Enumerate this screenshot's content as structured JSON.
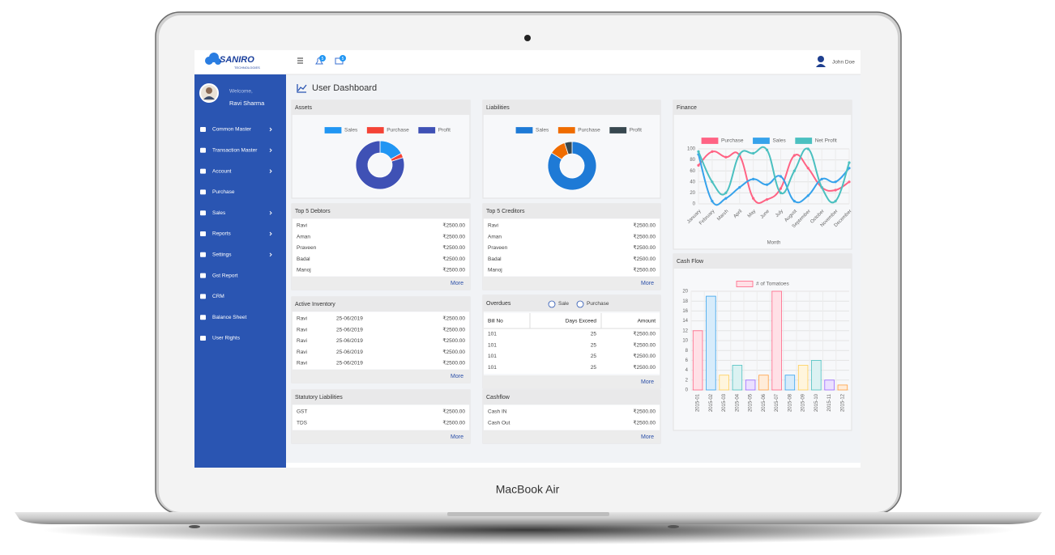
{
  "device": {
    "label": "MacBook Air"
  },
  "header": {
    "logo": "SANIRO",
    "logo_sub": "TECHNOLOGIES",
    "notifications": 5,
    "messages": 5,
    "user": "John Doe"
  },
  "sidebar": {
    "welcome": "Welcome,",
    "user": "Ravi Sharma",
    "menu": [
      {
        "label": "Common Master",
        "submenu": true
      },
      {
        "label": "Transaction Master",
        "submenu": true
      },
      {
        "label": "Account",
        "submenu": true
      },
      {
        "label": "Purchase",
        "submenu": false
      },
      {
        "label": "Sales",
        "submenu": true
      },
      {
        "label": "Reports",
        "submenu": true
      },
      {
        "label": "Settings",
        "submenu": true
      },
      {
        "label": "Gst Report",
        "submenu": false
      },
      {
        "label": "CRM",
        "submenu": false
      },
      {
        "label": "Balance Sheet",
        "submenu": false
      },
      {
        "label": "User Rights",
        "submenu": false
      }
    ]
  },
  "page_title": "User Dashboard",
  "panels": {
    "debtors": {
      "title": "Top 5 Debtors",
      "rows": [
        [
          "Ravi",
          "₹2500.00"
        ],
        [
          "Aman",
          "₹2500.00"
        ],
        [
          "Praveen",
          "₹2500.00"
        ],
        [
          "Badal",
          "₹2500.00"
        ],
        [
          "Manoj",
          "₹2500.00"
        ]
      ],
      "more": "More"
    },
    "creditors": {
      "title": "Top 5 Creditors",
      "rows": [
        [
          "Ravi",
          "₹2500.00"
        ],
        [
          "Aman",
          "₹2500.00"
        ],
        [
          "Praveen",
          "₹2500.00"
        ],
        [
          "Badal",
          "₹2500.00"
        ],
        [
          "Manoj",
          "₹2500.00"
        ]
      ],
      "more": "More"
    },
    "inventory": {
      "title": "Active Inventory",
      "rows": [
        [
          "Ravi",
          "25-06/2019",
          "₹2500.00"
        ],
        [
          "Ravi",
          "25-06/2019",
          "₹2500.00"
        ],
        [
          "Ravi",
          "25-06/2019",
          "₹2500.00"
        ],
        [
          "Ravi",
          "25-06/2019",
          "₹2500.00"
        ],
        [
          "Ravi",
          "25-06/2019",
          "₹2500.00"
        ]
      ],
      "more": "More"
    },
    "overdues": {
      "title": "Overdues",
      "options": [
        "Sale",
        "Purchase"
      ],
      "columns": [
        "Bill No",
        "Days Exceed",
        "Amount"
      ],
      "rows": [
        [
          101,
          25,
          "₹2500.00"
        ],
        [
          101,
          25,
          "₹2500.00"
        ],
        [
          101,
          25,
          "₹2500.00"
        ],
        [
          101,
          25,
          "₹2500.00"
        ]
      ],
      "more": "More"
    },
    "statutory": {
      "title": "Statutory Liabilities",
      "rows": [
        [
          "GST",
          "₹2500.00"
        ],
        [
          "TDS",
          "₹2500.00"
        ]
      ],
      "more": "More"
    },
    "cashflow": {
      "title": "Cashflow",
      "rows": [
        [
          "Cash IN",
          "₹2500.00"
        ],
        [
          "Cash Out",
          "₹2500.00"
        ]
      ],
      "more": "More"
    }
  },
  "chart_data": [
    {
      "type": "doughnut",
      "title": "Assets",
      "categories": [
        "Sales",
        "Purchase",
        "Profit"
      ],
      "values": [
        17,
        3,
        80
      ],
      "colors": [
        "#2196f3",
        "#f44336",
        "#3f51b5"
      ]
    },
    {
      "type": "doughnut",
      "title": "Liabilities",
      "categories": [
        "Sales",
        "Purchase",
        "Profit"
      ],
      "values": [
        84,
        11,
        5
      ],
      "colors": [
        "#1e7ad6",
        "#ef6c00",
        "#37474f"
      ]
    },
    {
      "type": "line",
      "title": "Finance",
      "x_label": "Month",
      "categories": [
        "January",
        "February",
        "March",
        "April",
        "May",
        "June",
        "July",
        "August",
        "September",
        "October",
        "November",
        "December"
      ],
      "series": [
        {
          "name": "Purchase",
          "color": "#ff6384",
          "values": [
            70,
            95,
            85,
            88,
            10,
            8,
            28,
            88,
            65,
            30,
            25,
            40
          ]
        },
        {
          "name": "Sales",
          "color": "#36a2eb",
          "values": [
            90,
            5,
            10,
            30,
            45,
            35,
            50,
            5,
            15,
            45,
            40,
            65
          ]
        },
        {
          "name": "Net Profit",
          "color": "#4bc0c0",
          "values": [
            95,
            40,
            20,
            90,
            92,
            98,
            20,
            60,
            100,
            30,
            5,
            75
          ]
        }
      ],
      "ylim": [
        0,
        100
      ],
      "yticks": [
        0,
        20,
        40,
        60,
        80,
        100
      ],
      "grid": true
    },
    {
      "type": "bar",
      "title": "Cash Flow",
      "categories": [
        "2015-01",
        "2015-02",
        "2015-03",
        "2015-04",
        "2015-05",
        "2015-06",
        "2015-07",
        "2015-08",
        "2015-09",
        "2015-10",
        "2015-11",
        "2015-12"
      ],
      "series": [
        {
          "name": "# of Tomatoes",
          "values": [
            12,
            19,
            3,
            5,
            2,
            3,
            20,
            3,
            5,
            6,
            2,
            1
          ]
        }
      ],
      "colors": [
        "#ffe0e6",
        "#d7ecfb",
        "#fff5dd",
        "#dbf2f2",
        "#ebe0ff",
        "#ffecd9",
        "#ffe0e6",
        "#d7ecfb",
        "#fff5dd",
        "#dbf2f2",
        "#ebe0ff",
        "#ffecd9"
      ],
      "border_colors": [
        "#ff6384",
        "#36a2eb",
        "#ffce56",
        "#4bc0c0",
        "#9966ff",
        "#ff9f40",
        "#ff6384",
        "#36a2eb",
        "#ffce56",
        "#4bc0c0",
        "#9966ff",
        "#ff9f40"
      ],
      "ylim": [
        0,
        20
      ],
      "yticks": [
        0,
        2,
        4,
        6,
        8,
        10,
        12,
        14,
        16,
        18,
        20
      ],
      "grid": true
    }
  ]
}
